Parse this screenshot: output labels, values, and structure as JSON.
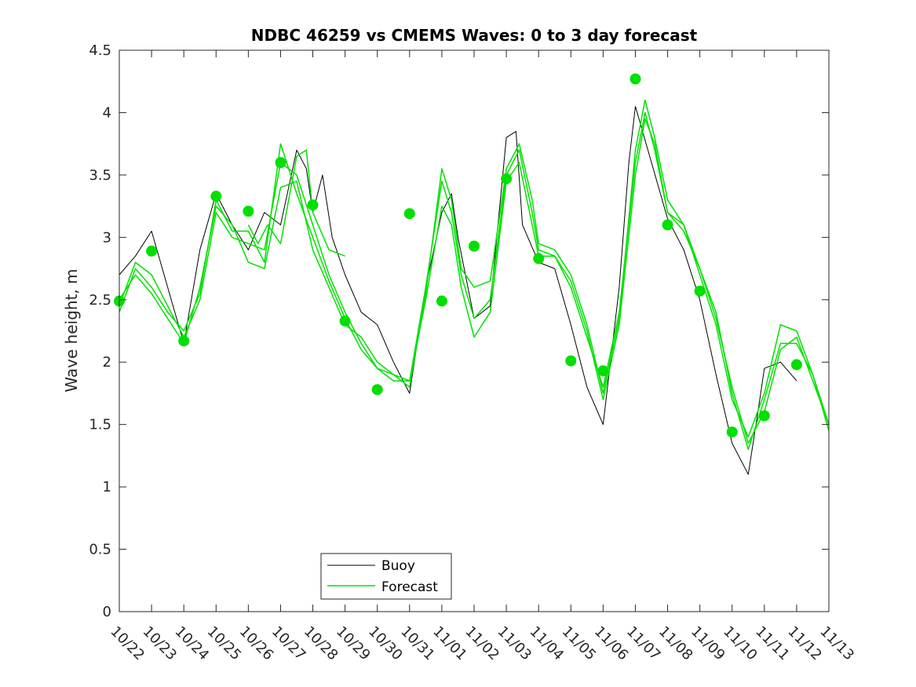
{
  "chart_data": {
    "type": "line",
    "title": "NDBC 46259 vs CMEMS Waves: 0 to 3 day forecast",
    "xlabel": "",
    "ylabel": "Wave height, m",
    "ylim": [
      0,
      4.5
    ],
    "yticks": [
      "0",
      "0.5",
      "1",
      "1.5",
      "2",
      "2.5",
      "3",
      "3.5",
      "4",
      "4.5"
    ],
    "xlim": [
      0,
      22
    ],
    "xtick_labels": [
      "10/22",
      "10/23",
      "10/24",
      "10/25",
      "10/26",
      "10/27",
      "10/28",
      "10/29",
      "10/30",
      "10/31",
      "11/01",
      "11/02",
      "11/03",
      "11/04",
      "11/05",
      "11/06",
      "11/07",
      "11/08",
      "11/09",
      "11/10",
      "11/11",
      "11/12",
      "11/13"
    ],
    "legend": {
      "location": "bottom-center",
      "entries": [
        "Buoy",
        "Forecast"
      ]
    },
    "colors": {
      "buoy": "#000000",
      "forecast": "#00e000",
      "markers": "#00e000",
      "axes": "#262626"
    },
    "series": [
      {
        "name": "Buoy",
        "x": [
          0,
          0.5,
          1,
          1.5,
          2,
          2.5,
          3,
          3.5,
          4,
          4.5,
          5,
          5.5,
          5.8,
          6,
          6.3,
          6.6,
          7,
          7.5,
          8,
          8.5,
          9,
          9.5,
          10,
          10.3,
          10.5,
          11,
          11.5,
          12,
          12.3,
          12.5,
          13,
          13.5,
          14,
          14.5,
          15,
          15.5,
          15.8,
          16,
          16.5,
          17,
          17.5,
          18,
          18.5,
          19,
          19.5,
          19.8,
          20,
          20.5,
          21,
          21.5,
          22
        ],
        "y": [
          2.7,
          2.85,
          3.05,
          2.6,
          2.15,
          2.9,
          3.35,
          3.1,
          2.9,
          3.2,
          3.1,
          3.7,
          3.55,
          3.2,
          3.5,
          3.0,
          2.7,
          2.4,
          2.3,
          2.0,
          1.75,
          2.6,
          3.2,
          3.35,
          3.0,
          2.35,
          2.45,
          3.8,
          3.85,
          3.1,
          2.8,
          2.75,
          2.3,
          1.8,
          1.5,
          2.6,
          3.6,
          4.05,
          3.6,
          3.15,
          2.9,
          2.5,
          1.9,
          1.35,
          1.1,
          1.6,
          1.95,
          2.0,
          1.85,
          null,
          null
        ]
      },
      {
        "name": "Forecast 1",
        "x": [
          0,
          0.5,
          1,
          1.5,
          2,
          2.5,
          3,
          3.5,
          4,
          4.5,
          5,
          5.5,
          6,
          6.5,
          7,
          7.5,
          8,
          8.5,
          9,
          9.5,
          10,
          10.3,
          10.6,
          11,
          11.5,
          12,
          12.4,
          12.8,
          13,
          13.5,
          14,
          14.5,
          15,
          15.5,
          16,
          16.3,
          16.6,
          17,
          17.5,
          18,
          18.5,
          19,
          19.5,
          20,
          20.5,
          21,
          21.5,
          22
        ],
        "y": [
          2.45,
          2.8,
          2.7,
          2.45,
          2.2,
          2.5,
          3.2,
          3.0,
          2.95,
          2.9,
          3.6,
          3.5,
          3.1,
          2.7,
          2.4,
          2.15,
          1.95,
          1.85,
          1.85,
          2.6,
          3.45,
          3.2,
          2.7,
          2.35,
          2.5,
          3.5,
          3.7,
          3.2,
          2.9,
          2.85,
          2.6,
          2.2,
          1.8,
          2.4,
          3.6,
          4.0,
          3.7,
          3.2,
          3.1,
          2.75,
          2.35,
          1.8,
          1.35,
          1.6,
          2.1,
          2.2,
          1.85,
          1.5
        ]
      },
      {
        "name": "Forecast 2",
        "x": [
          0,
          0.5,
          1,
          1.5,
          2,
          2.5,
          3,
          3.5,
          4,
          4.5,
          5,
          5.5,
          6,
          6.5,
          7,
          7.5,
          8,
          8.5,
          9,
          9.5,
          10,
          10.3,
          10.6,
          11,
          11.5,
          12,
          12.4,
          12.8,
          13,
          13.5,
          14,
          14.5,
          15,
          15.5,
          16,
          16.3,
          16.6,
          17,
          17.5,
          18,
          18.5,
          19,
          19.5,
          20,
          20.5,
          21,
          21.5,
          22
        ],
        "y": [
          2.4,
          2.75,
          2.6,
          2.4,
          2.25,
          2.55,
          3.3,
          3.05,
          3.05,
          2.8,
          3.75,
          3.35,
          3.0,
          2.65,
          2.35,
          2.1,
          1.95,
          1.9,
          1.8,
          2.55,
          3.55,
          3.3,
          2.75,
          2.6,
          2.65,
          3.55,
          3.75,
          3.3,
          2.95,
          2.9,
          2.7,
          2.3,
          1.75,
          2.35,
          3.7,
          4.1,
          3.8,
          3.3,
          3.1,
          2.7,
          2.3,
          1.7,
          1.4,
          1.75,
          2.3,
          2.25,
          1.9,
          1.45
        ]
      },
      {
        "name": "Forecast 3",
        "x": [
          0,
          0.5,
          1,
          1.5,
          2,
          2.5,
          3,
          3.5,
          4,
          4.5,
          5,
          5.5,
          6,
          6.5,
          7,
          7.5,
          8,
          8.5,
          9,
          9.5,
          10,
          10.3,
          10.6,
          11,
          11.5,
          12,
          12.4,
          12.8,
          13,
          13.5,
          14,
          14.5,
          15,
          15.5,
          16,
          16.3,
          16.6,
          17,
          17.5,
          18,
          18.5,
          19,
          19.5,
          20,
          20.5,
          21,
          21.5,
          22
        ],
        "y": [
          2.5,
          2.7,
          2.55,
          2.35,
          2.15,
          2.6,
          3.25,
          3.1,
          2.8,
          2.75,
          3.4,
          3.45,
          2.9,
          2.6,
          2.3,
          2.2,
          2.0,
          1.9,
          1.85,
          2.5,
          3.25,
          3.1,
          2.6,
          2.2,
          2.4,
          3.45,
          3.6,
          3.1,
          2.85,
          2.85,
          2.65,
          2.25,
          1.7,
          2.3,
          3.5,
          3.95,
          3.75,
          3.2,
          3.05,
          2.75,
          2.4,
          1.75,
          1.3,
          1.7,
          2.15,
          2.15,
          1.9,
          1.5
        ]
      },
      {
        "name": "Forecast 4",
        "x": [
          4.0,
          4.3,
          4.6,
          5.0,
          5.5,
          5.8,
          6.0,
          6.5,
          7.0
        ],
        "y": [
          3.1,
          2.95,
          3.1,
          2.95,
          3.65,
          3.7,
          3.2,
          2.9,
          2.85
        ]
      }
    ],
    "markers": {
      "name": "Forecast markers",
      "x": [
        0,
        1,
        2,
        3,
        4,
        5,
        6,
        7,
        8,
        9,
        10,
        11,
        12,
        13,
        14,
        15,
        16,
        17,
        18,
        19,
        20,
        21
      ],
      "y": [
        2.49,
        2.89,
        2.17,
        3.33,
        3.21,
        3.6,
        3.26,
        2.33,
        1.78,
        3.19,
        2.49,
        2.93,
        3.47,
        2.83,
        2.01,
        1.93,
        4.27,
        3.1,
        2.57,
        1.44,
        1.57,
        1.98
      ]
    }
  }
}
